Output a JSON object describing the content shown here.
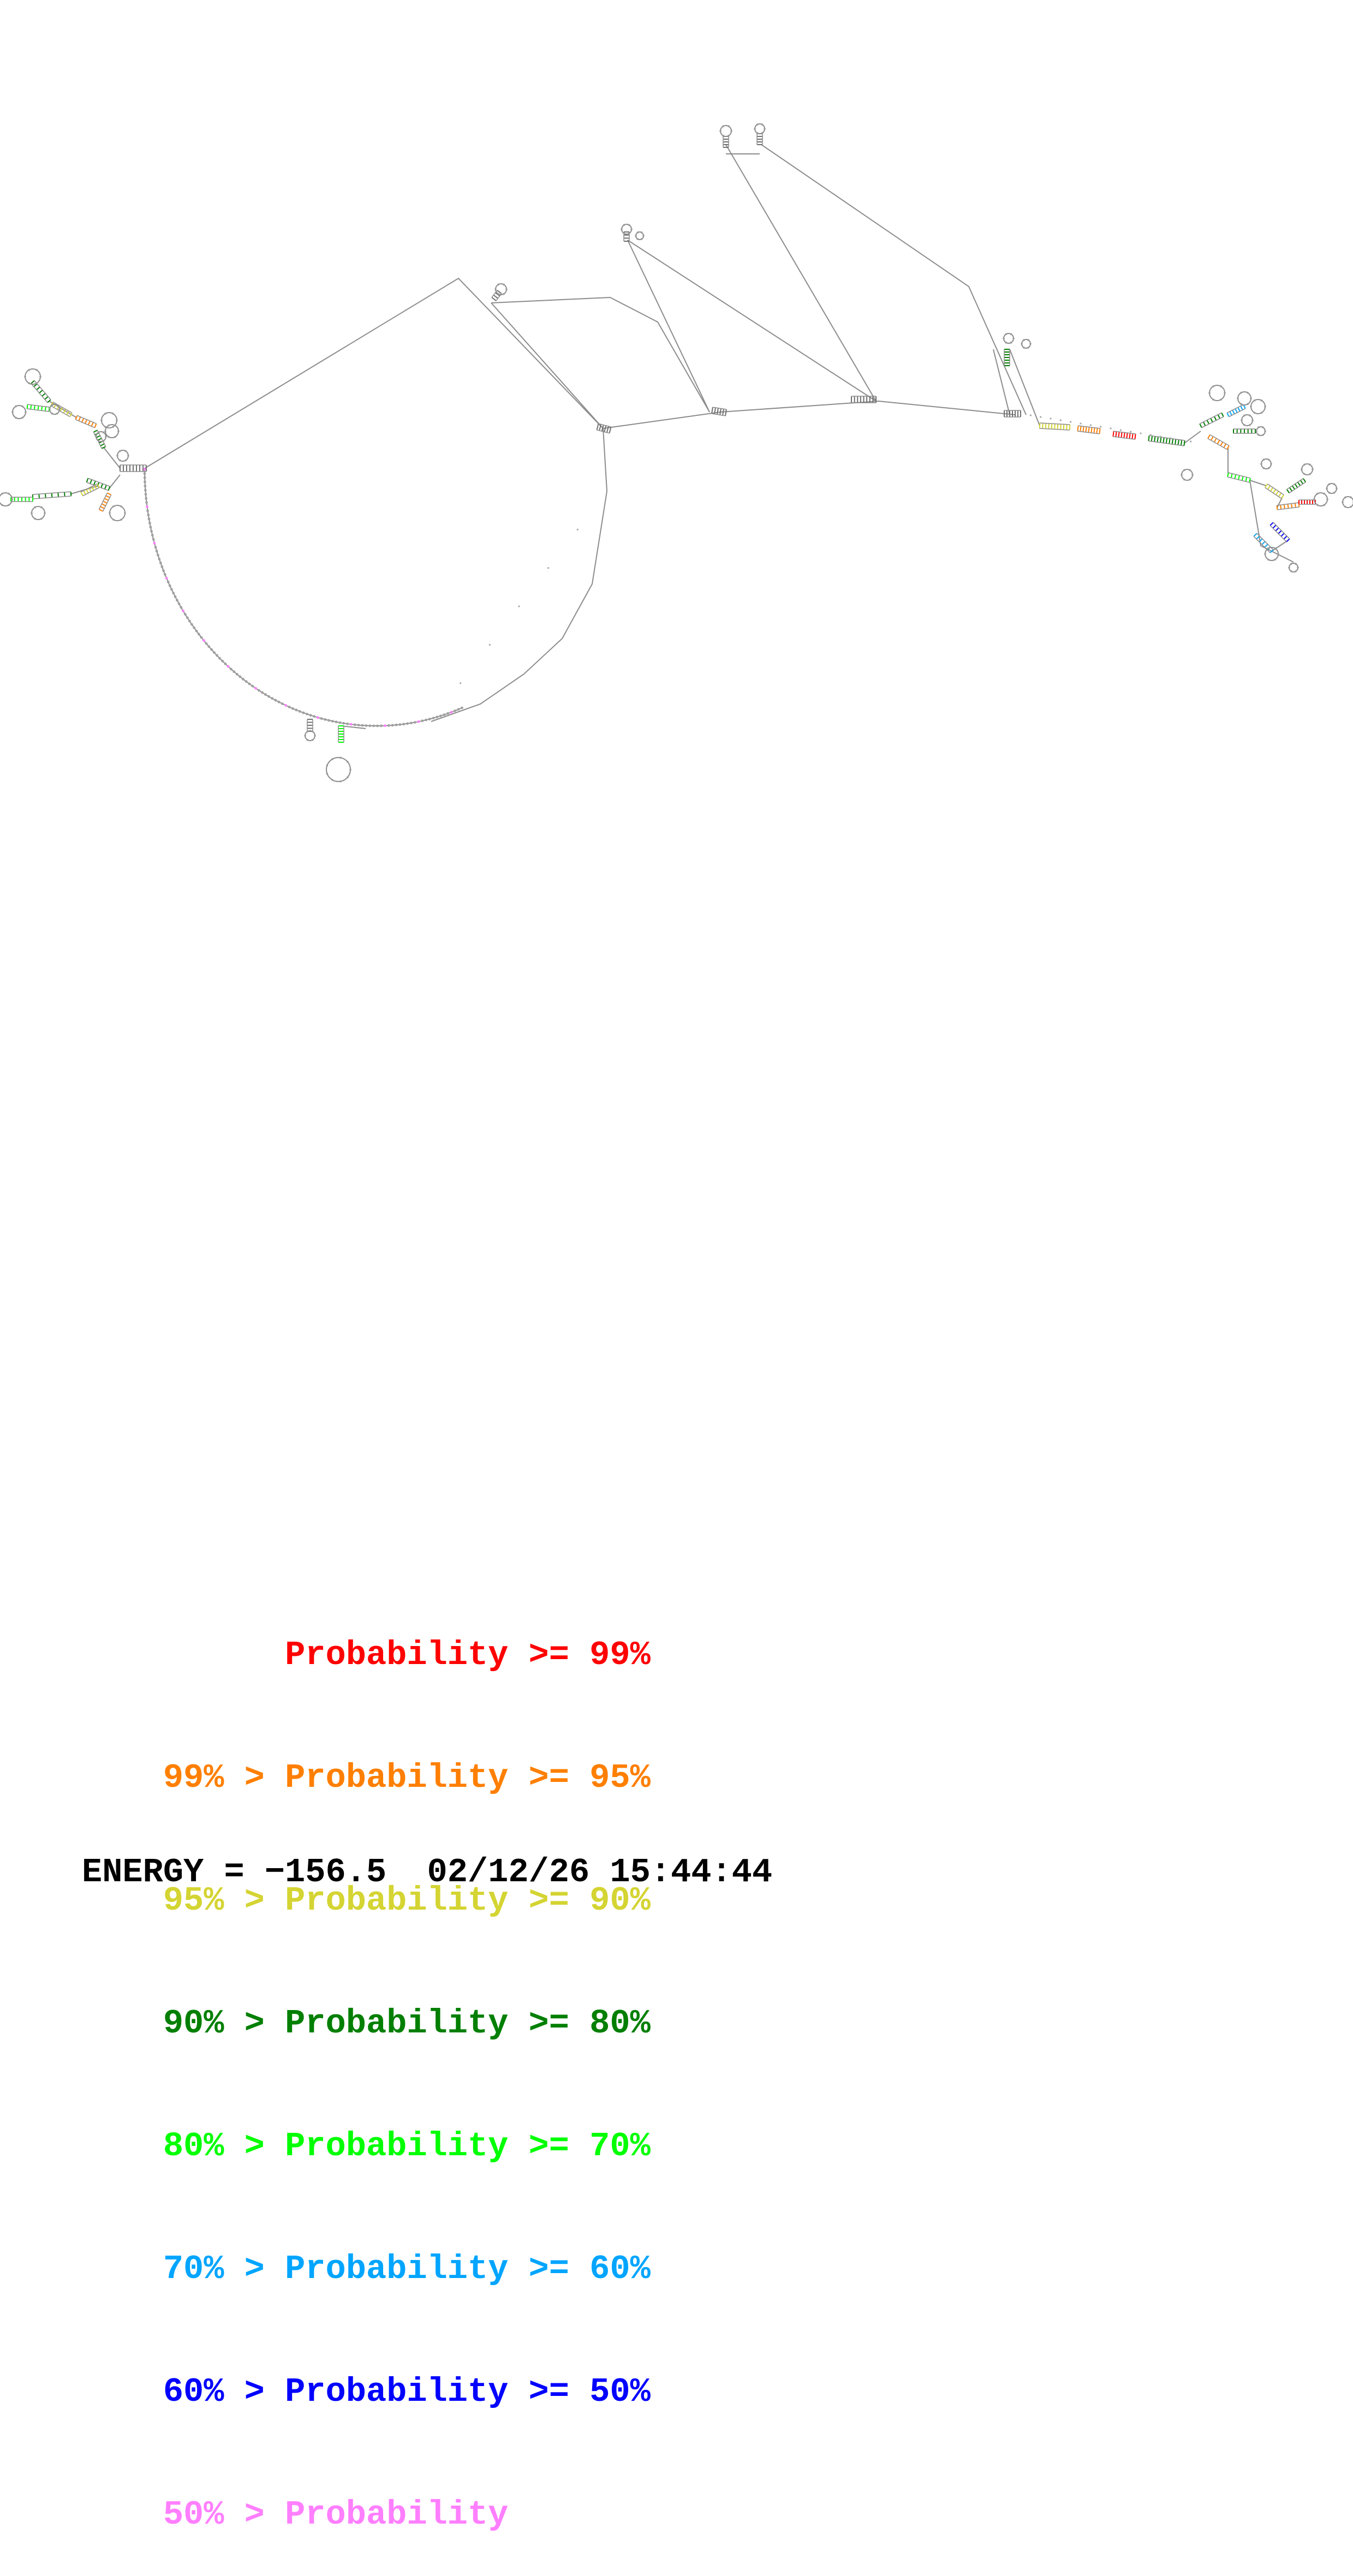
{
  "legend": [
    {
      "prefix": "",
      "label": "Probability >= 99%",
      "color": "#ff0000"
    },
    {
      "prefix": "99% > ",
      "label": "Probability >= 95%",
      "color": "#ff7f00"
    },
    {
      "prefix": "95% > ",
      "label": "Probability >= 90%",
      "color": "#d4d433"
    },
    {
      "prefix": "90% > ",
      "label": "Probability >= 80%",
      "color": "#007f00"
    },
    {
      "prefix": "80% > ",
      "label": "Probability >= 70%",
      "color": "#00ff00"
    },
    {
      "prefix": "70% > ",
      "label": "Probability >= 60%",
      "color": "#00a5ff"
    },
    {
      "prefix": "60% > ",
      "label": "Probability >= 50%",
      "color": "#0000ff"
    },
    {
      "prefix": "50% > ",
      "label": "Probability",
      "color": "#ff7fff"
    }
  ],
  "footer": {
    "energy": "ENERGY = −156.5",
    "timestamp": "02/12/26 15:44:44"
  },
  "diagram": {
    "backbone_color": "#808080",
    "base_color": "#b0b0b0"
  }
}
